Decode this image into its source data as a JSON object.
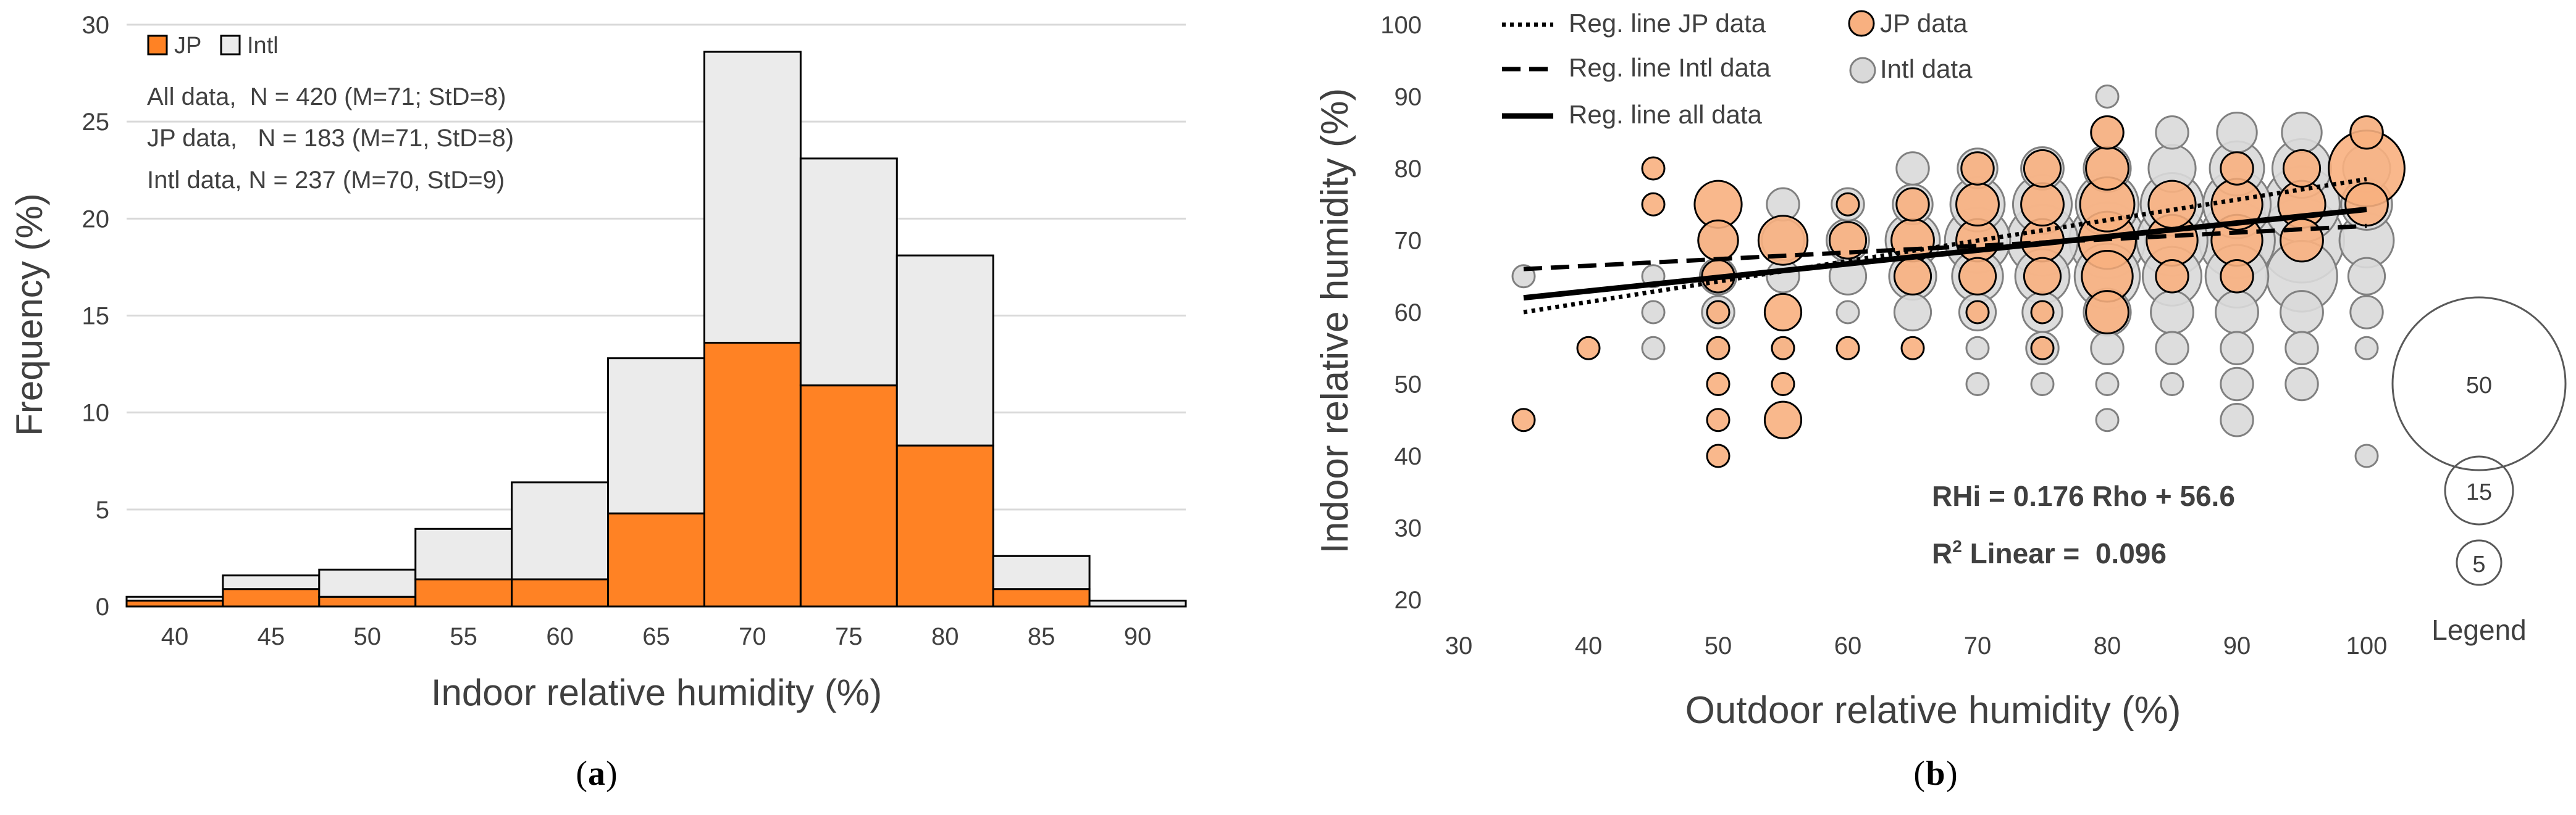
{
  "chart_data": [
    {
      "type": "bar",
      "stacked": true,
      "panel_label": "a",
      "xlabel": "Indoor relative humidity (%)",
      "ylabel": "Frequency (%)",
      "ylim": [
        0,
        30
      ],
      "yticks": [
        "0",
        "5",
        "10",
        "15",
        "20",
        "25",
        "30"
      ],
      "categories": [
        "40",
        "45",
        "50",
        "55",
        "60",
        "65",
        "70",
        "75",
        "80",
        "85",
        "90"
      ],
      "series": [
        {
          "name": "JP",
          "color": "#FF8224",
          "values": [
            0.3,
            0.9,
            0.5,
            1.4,
            1.4,
            4.8,
            13.6,
            11.4,
            8.3,
            0.9,
            0.0
          ]
        },
        {
          "name": "Intl",
          "color": "#EBEBEB",
          "values": [
            0.2,
            0.7,
            1.4,
            2.6,
            5.0,
            8.0,
            15.0,
            11.7,
            9.8,
            1.7,
            0.3
          ]
        }
      ],
      "legend": {
        "position": "top-left",
        "entries": [
          "JP",
          "Intl"
        ]
      },
      "annotations": [
        "All data,  N = 420 (M=71; StD=8)",
        "JP data,   N = 183 (M=71, StD=8)",
        "Intl data, N = 237 (M=70, StD=9)"
      ]
    },
    {
      "type": "scatter",
      "subtype": "bubble",
      "panel_label": "b",
      "xlabel": "Outdoor relative humidity (%)",
      "ylabel": "Indoor relative humidity (%)",
      "xlim": [
        30,
        100
      ],
      "ylim": [
        20,
        100
      ],
      "xticks": [
        "30",
        "40",
        "50",
        "60",
        "70",
        "80",
        "90",
        "100"
      ],
      "yticks": [
        "20",
        "30",
        "40",
        "50",
        "60",
        "70",
        "80",
        "90",
        "100"
      ],
      "legend_entries": [
        "Reg. line JP data",
        "JP data",
        "Reg. line Intl data",
        "Intl data",
        "Reg. line all data"
      ],
      "size_legend": {
        "title": "Legend",
        "values": [
          "50",
          "15",
          "5"
        ]
      },
      "regression_lines": [
        {
          "name": "Reg. line JP data",
          "style": "dotted",
          "x": [
            35,
            100
          ],
          "y": [
            60,
            78.5
          ]
        },
        {
          "name": "Reg. line Intl data",
          "style": "dashed",
          "x": [
            35,
            100
          ],
          "y": [
            66,
            72
          ]
        },
        {
          "name": "Reg. line all data",
          "style": "solid",
          "x": [
            35,
            100
          ],
          "y": [
            62,
            74.3
          ]
        }
      ],
      "equation": "RHi = 0.176 Rho + 56.6",
      "r2_label": "R",
      "r2_sup": "2",
      "r2_value": " Linear =  0.096",
      "series": [
        {
          "name": "Intl data",
          "color": "#D9D9D9",
          "points": [
            [
              35,
              65,
              2
            ],
            [
              45,
              55,
              2
            ],
            [
              45,
              60,
              2
            ],
            [
              45,
              65,
              2
            ],
            [
              50,
              55,
              2
            ],
            [
              50,
              60,
              3
            ],
            [
              50,
              65,
              4
            ],
            [
              50,
              70,
              5
            ],
            [
              55,
              55,
              2
            ],
            [
              55,
              65,
              3
            ],
            [
              55,
              70,
              6
            ],
            [
              55,
              75,
              3
            ],
            [
              60,
              60,
              2
            ],
            [
              60,
              65,
              4
            ],
            [
              60,
              70,
              6
            ],
            [
              60,
              75,
              3
            ],
            [
              65,
              60,
              4
            ],
            [
              65,
              65,
              8
            ],
            [
              65,
              70,
              12
            ],
            [
              65,
              75,
              5
            ],
            [
              65,
              80,
              3
            ],
            [
              70,
              50,
              2
            ],
            [
              70,
              55,
              2
            ],
            [
              70,
              60,
              4
            ],
            [
              70,
              65,
              10
            ],
            [
              70,
              70,
              20
            ],
            [
              70,
              75,
              12
            ],
            [
              70,
              80,
              5
            ],
            [
              75,
              50,
              2
            ],
            [
              75,
              55,
              3
            ],
            [
              75,
              60,
              5
            ],
            [
              75,
              65,
              12
            ],
            [
              75,
              70,
              25
            ],
            [
              75,
              75,
              15
            ],
            [
              75,
              80,
              6
            ],
            [
              80,
              45,
              2
            ],
            [
              80,
              50,
              2
            ],
            [
              80,
              55,
              3
            ],
            [
              80,
              60,
              8
            ],
            [
              80,
              65,
              20
            ],
            [
              80,
              70,
              30
            ],
            [
              80,
              75,
              18
            ],
            [
              80,
              80,
              8
            ],
            [
              80,
              85,
              3
            ],
            [
              80,
              90,
              2
            ],
            [
              85,
              50,
              2
            ],
            [
              85,
              55,
              3
            ],
            [
              85,
              60,
              6
            ],
            [
              85,
              65,
              15
            ],
            [
              85,
              70,
              25
            ],
            [
              85,
              75,
              18
            ],
            [
              85,
              80,
              8
            ],
            [
              85,
              85,
              3
            ],
            [
              90,
              45,
              3
            ],
            [
              90,
              50,
              3
            ],
            [
              90,
              55,
              3
            ],
            [
              90,
              60,
              6
            ],
            [
              90,
              65,
              18
            ],
            [
              90,
              70,
              30
            ],
            [
              90,
              75,
              22
            ],
            [
              90,
              80,
              12
            ],
            [
              90,
              85,
              5
            ],
            [
              95,
              50,
              3
            ],
            [
              95,
              55,
              3
            ],
            [
              95,
              60,
              6
            ],
            [
              95,
              65,
              25
            ],
            [
              95,
              70,
              40
            ],
            [
              95,
              75,
              30
            ],
            [
              95,
              80,
              15
            ],
            [
              95,
              85,
              5
            ],
            [
              100,
              40,
              2
            ],
            [
              100,
              55,
              2
            ],
            [
              100,
              60,
              3
            ],
            [
              100,
              65,
              4
            ],
            [
              100,
              70,
              12
            ],
            [
              100,
              75,
              10
            ],
            [
              100,
              80,
              8
            ],
            [
              100,
              85,
              3
            ]
          ]
        },
        {
          "name": "JP data",
          "color": "#F8B080",
          "points": [
            [
              35,
              45,
              2
            ],
            [
              40,
              55,
              2
            ],
            [
              45,
              75,
              2
            ],
            [
              45,
              80,
              2
            ],
            [
              50,
              40,
              2
            ],
            [
              50,
              45,
              2
            ],
            [
              50,
              50,
              2
            ],
            [
              50,
              55,
              2
            ],
            [
              50,
              60,
              2
            ],
            [
              50,
              65,
              3
            ],
            [
              50,
              70,
              5
            ],
            [
              50,
              75,
              8
            ],
            [
              55,
              45,
              4
            ],
            [
              55,
              50,
              2
            ],
            [
              55,
              55,
              2
            ],
            [
              55,
              60,
              4
            ],
            [
              55,
              70,
              9
            ],
            [
              60,
              55,
              2
            ],
            [
              60,
              70,
              4
            ],
            [
              60,
              75,
              2
            ],
            [
              65,
              55,
              2
            ],
            [
              65,
              65,
              4
            ],
            [
              65,
              70,
              6
            ],
            [
              65,
              75,
              3
            ],
            [
              70,
              60,
              2
            ],
            [
              70,
              65,
              4
            ],
            [
              70,
              70,
              6
            ],
            [
              70,
              75,
              6
            ],
            [
              70,
              80,
              3
            ],
            [
              75,
              55,
              2
            ],
            [
              75,
              60,
              2
            ],
            [
              75,
              65,
              4
            ],
            [
              75,
              70,
              6
            ],
            [
              75,
              75,
              6
            ],
            [
              75,
              80,
              4
            ],
            [
              80,
              60,
              6
            ],
            [
              80,
              65,
              10
            ],
            [
              80,
              70,
              14
            ],
            [
              80,
              75,
              12
            ],
            [
              80,
              80,
              6
            ],
            [
              80,
              85,
              3
            ],
            [
              85,
              65,
              3
            ],
            [
              85,
              70,
              10
            ],
            [
              85,
              75,
              8
            ],
            [
              90,
              65,
              3
            ],
            [
              90,
              70,
              10
            ],
            [
              90,
              75,
              10
            ],
            [
              90,
              80,
              3
            ],
            [
              95,
              70,
              6
            ],
            [
              95,
              75,
              8
            ],
            [
              95,
              80,
              4
            ],
            [
              100,
              75,
              6
            ],
            [
              100,
              80,
              30
            ],
            [
              100,
              85,
              3
            ]
          ]
        }
      ]
    }
  ]
}
